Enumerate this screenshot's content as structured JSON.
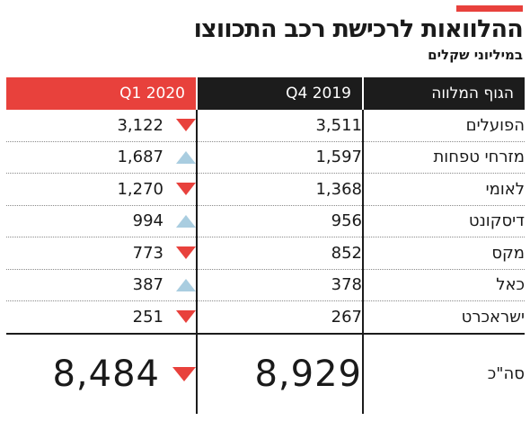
{
  "chart_data": {
    "type": "table",
    "title": "ההלוואות לרכישת רכב התכווצו",
    "subtitle": "במיליוני שקלים",
    "columns": [
      "הגוף המלווה",
      "Q4 2019",
      "Q1 2020"
    ],
    "rows": [
      {
        "lender": "הפועלים",
        "q4_2019": "3,511",
        "q1_2020": "3,122",
        "trend": "down"
      },
      {
        "lender": "מזרחי טפחות",
        "q4_2019": "1,597",
        "q1_2020": "1,687",
        "trend": "up"
      },
      {
        "lender": "לאומי",
        "q4_2019": "1,368",
        "q1_2020": "1,270",
        "trend": "down"
      },
      {
        "lender": "דיסקונט",
        "q4_2019": "956",
        "q1_2020": "994",
        "trend": "up"
      },
      {
        "lender": "מקס",
        "q4_2019": "852",
        "q1_2020": "773",
        "trend": "down"
      },
      {
        "lender": "כאל",
        "q4_2019": "378",
        "q1_2020": "387",
        "trend": "up"
      },
      {
        "lender": "ישראכרט",
        "q4_2019": "267",
        "q1_2020": "251",
        "trend": "down"
      }
    ],
    "total": {
      "label": "סה\"כ",
      "q4_2019": "8,929",
      "q1_2020": "8,484",
      "trend": "down"
    },
    "colors": {
      "accent": "#e8413c",
      "header_dark": "#1c1c1c",
      "down": "#e8413c",
      "up": "#a9cde0"
    },
    "icons": {
      "down": "red-down-triangle",
      "up": "blue-up-triangle"
    }
  }
}
